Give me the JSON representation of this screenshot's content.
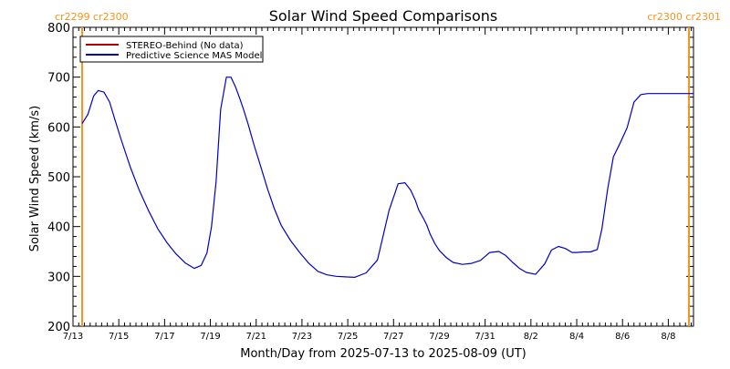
{
  "chart_data": {
    "type": "line",
    "title": "Solar Wind Speed Comparisons",
    "xlabel": "Month/Day from 2025-07-13 to 2025-08-09 (UT)",
    "ylabel": "Solar Wind Speed (km/s)",
    "xlim": [
      0,
      27.1
    ],
    "ylim": [
      200,
      800
    ],
    "x_ticks": [
      0,
      2,
      4,
      6,
      8,
      10,
      12,
      14,
      16,
      18,
      20,
      22,
      24,
      26
    ],
    "x_tick_labels": [
      "7/13",
      "7/15",
      "7/17",
      "7/19",
      "7/21",
      "7/23",
      "7/25",
      "7/27",
      "7/29",
      "7/31",
      "8/2",
      "8/4",
      "8/6",
      "8/8"
    ],
    "y_ticks": [
      200,
      300,
      400,
      500,
      600,
      700,
      800
    ],
    "y_tick_labels": [
      "200",
      "300",
      "400",
      "500",
      "600",
      "700",
      "800"
    ],
    "grid": false,
    "legend_position": "top-left",
    "series": [
      {
        "name": "STEREO-Behind (No data)",
        "color": "#b00000",
        "x": [],
        "y": []
      },
      {
        "name": "Predictive Science MAS Model",
        "color": "#0000c8",
        "x": [
          0.4,
          0.65,
          0.9,
          1.1,
          1.35,
          1.6,
          1.85,
          2.1,
          2.5,
          2.9,
          3.3,
          3.7,
          4.1,
          4.5,
          4.9,
          5.3,
          5.6,
          5.85,
          6.05,
          6.25,
          6.45,
          6.7,
          6.9,
          7.1,
          7.3,
          7.45,
          7.65,
          7.9,
          8.2,
          8.5,
          8.8,
          9.1,
          9.5,
          9.9,
          10.3,
          10.7,
          11.1,
          11.5,
          11.9,
          12.3,
          12.8,
          13.3,
          13.8,
          14.2,
          14.5,
          14.75,
          14.95,
          15.1,
          15.3,
          15.45,
          15.6,
          15.8,
          16.0,
          16.3,
          16.6,
          17.0,
          17.4,
          17.8,
          18.2,
          18.6,
          18.9,
          19.2,
          19.5,
          19.8,
          20.2,
          20.6,
          20.9,
          21.2,
          21.5,
          21.8,
          22.0,
          22.3,
          22.6,
          22.9,
          23.1,
          23.35,
          23.6,
          23.9,
          24.2,
          24.5,
          24.8,
          25.1,
          25.4,
          25.7,
          25.9,
          26.1,
          26.3,
          26.6,
          26.85,
          27.1
        ],
        "y": [
          607,
          625,
          662,
          673,
          670,
          650,
          612,
          575,
          520,
          472,
          432,
          396,
          368,
          345,
          327,
          316,
          322,
          347,
          400,
          490,
          635,
          700,
          700,
          680,
          655,
          635,
          605,
          565,
          520,
          475,
          435,
          402,
          372,
          348,
          326,
          310,
          303,
          300,
          299,
          298,
          307,
          333,
          432,
          486,
          488,
          473,
          453,
          433,
          417,
          403,
          385,
          366,
          352,
          338,
          328,
          324,
          326,
          332,
          348,
          350,
          342,
          328,
          316,
          308,
          304,
          325,
          353,
          360,
          356,
          348,
          348,
          349,
          349,
          354,
          395,
          475,
          540,
          568,
          598,
          650,
          665,
          667,
          667,
          667,
          667,
          667,
          667,
          667,
          667,
          667
        ]
      }
    ],
    "vertical_markers": [
      {
        "x": 0.4,
        "color": "#f7931e",
        "label_top": "cr2299 cr2300"
      },
      {
        "x": 26.9,
        "color": "#f7931e",
        "label_top": "cr2300 cr2301"
      }
    ]
  }
}
